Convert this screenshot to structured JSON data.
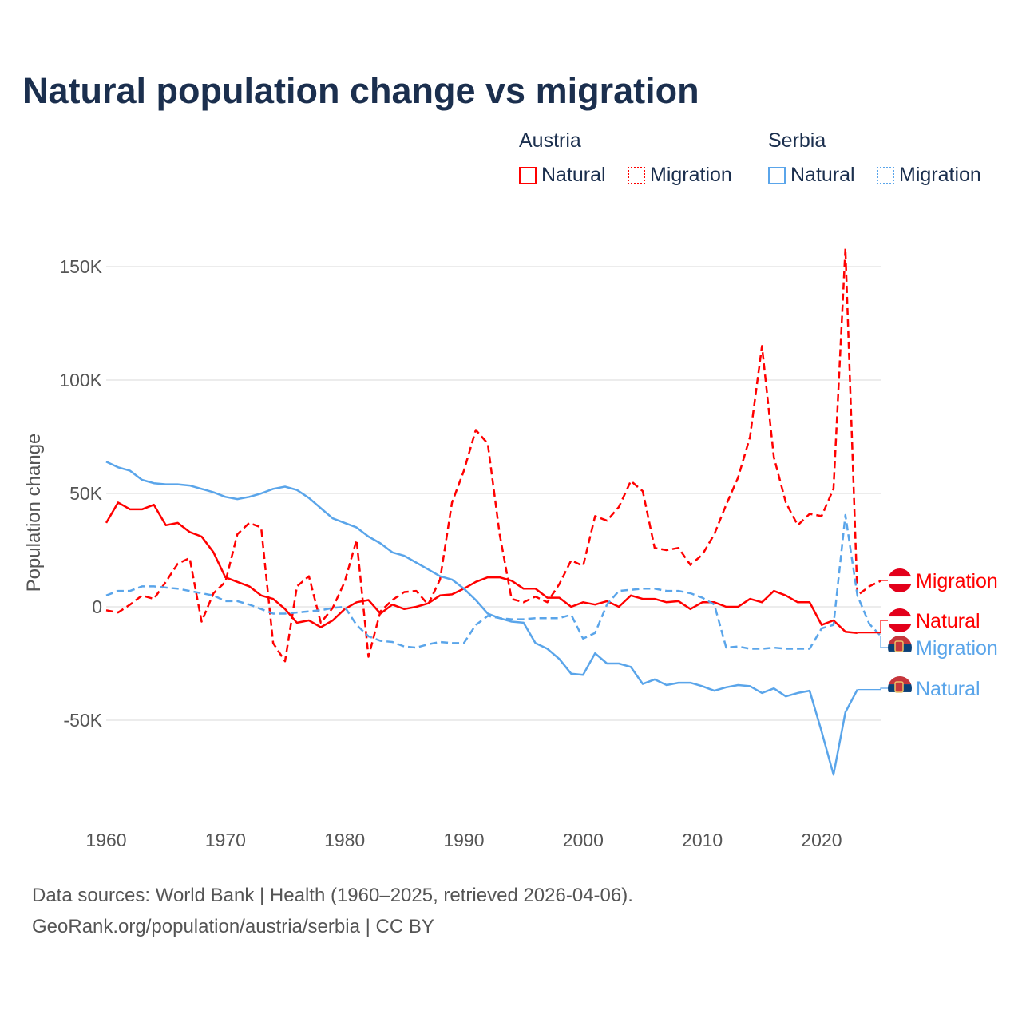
{
  "title": "Natural population change vs migration",
  "legend": {
    "groups": [
      {
        "name": "Austria",
        "items": [
          "Natural",
          "Migration"
        ]
      },
      {
        "name": "Serbia",
        "items": [
          "Natural",
          "Migration"
        ]
      }
    ]
  },
  "footer": {
    "line1": "Data sources: World Bank | Health (1960–2025, retrieved 2026-04-06).",
    "line2": "GeoRank.org/population/austria/serbia | CC BY"
  },
  "colors": {
    "austria": "#ff0000",
    "serbia": "#5aa5ea",
    "title": "#1b2f4e"
  },
  "chart_data": {
    "type": "line",
    "title": "Natural population change vs migration",
    "xlabel": "",
    "ylabel": "Population change",
    "xlim": [
      1960,
      2025
    ],
    "ylim": [
      -90000,
      175000
    ],
    "x_ticks": [
      1960,
      1970,
      1980,
      1990,
      2000,
      2010,
      2020
    ],
    "x_tick_labels": [
      "1960",
      "1970",
      "1980",
      "1990",
      "2000",
      "2010",
      "2020"
    ],
    "y_ticks": [
      -50000,
      0,
      50000,
      100000,
      150000
    ],
    "y_tick_labels": [
      "-50K",
      "0",
      "50K",
      "100K",
      "150K"
    ],
    "grid": true,
    "legend_position": "top-right",
    "x_start": 1960,
    "series": [
      {
        "name": "Austria Natural",
        "label": "Natural",
        "color": "#ff0000",
        "dash": false,
        "values": [
          37,
          46,
          43,
          43,
          45,
          36,
          37,
          33,
          31,
          24,
          13,
          11,
          9,
          5,
          3.5,
          -1,
          -7,
          -6,
          -9,
          -6,
          -1,
          2,
          3,
          -3,
          1,
          -1,
          0,
          1.5,
          5,
          5.5,
          8,
          11,
          13,
          13,
          11.5,
          8,
          8,
          4,
          4,
          0,
          2,
          1,
          2.5,
          0,
          5,
          3.5,
          3.5,
          2,
          2.5,
          -1,
          2,
          2,
          0,
          0,
          3.5,
          2,
          7,
          5,
          2,
          2,
          -8,
          -6,
          -11,
          -11.5
        ]
      },
      {
        "name": "Austria Migration",
        "label": "Migration",
        "color": "#ff0000",
        "dash": true,
        "values": [
          -1.5,
          -2.5,
          1,
          5,
          3.5,
          11,
          19,
          21.5,
          -6.5,
          6,
          11,
          32,
          37,
          35,
          -16,
          -24,
          9,
          13.5,
          -7,
          -0.5,
          11,
          29.5,
          -22,
          -2,
          3,
          6.5,
          7,
          1,
          12,
          46,
          60,
          78,
          72,
          32,
          3.5,
          2,
          4.5,
          2,
          10,
          20.5,
          18,
          40,
          38,
          44,
          55.5,
          51,
          26,
          25,
          26,
          18.5,
          23,
          32,
          45,
          57,
          75,
          115,
          66,
          46,
          36,
          41,
          40,
          52,
          158,
          5,
          9,
          11.5
        ]
      },
      {
        "name": "Serbia Natural",
        "label": "Natural",
        "color": "#5aa5ea",
        "dash": false,
        "values": [
          64,
          61.5,
          60,
          56,
          54.5,
          54,
          54,
          53.5,
          52,
          50.5,
          48.5,
          47.5,
          48.5,
          50,
          52,
          53,
          51.5,
          48,
          43.5,
          39,
          37,
          35,
          31,
          28,
          24,
          22.5,
          19.5,
          16.5,
          13.5,
          12,
          8,
          3,
          -3,
          -5,
          -6.5,
          -7,
          -16,
          -18.5,
          -23,
          -29.5,
          -30,
          -20.5,
          -25,
          -25,
          -26.5,
          -34,
          -32,
          -34.5,
          -33.5,
          -33.5,
          -35,
          -37,
          -35.5,
          -34.5,
          -35,
          -38,
          -36,
          -39.5,
          -38,
          -37,
          -55,
          -74,
          -46.5,
          -36.5
        ]
      },
      {
        "name": "Serbia Migration",
        "label": "Migration",
        "color": "#5aa5ea",
        "dash": true,
        "values": [
          5,
          7,
          7,
          9,
          9,
          8.5,
          8,
          7,
          6,
          5,
          2.5,
          2.5,
          1,
          -1,
          -3,
          -3,
          -2.5,
          -2,
          -1.5,
          -0.5,
          0,
          -8,
          -13,
          -15,
          -15.5,
          -17.5,
          -18,
          -16.5,
          -15.5,
          -16,
          -16,
          -8,
          -4,
          -5,
          -5.5,
          -5.5,
          -5,
          -5,
          -5,
          -3.5,
          -14,
          -11.5,
          1,
          7,
          7.5,
          8,
          8,
          7,
          7,
          6,
          4,
          1,
          -18,
          -17.5,
          -18.5,
          -18.5,
          -18,
          -18.5,
          -18.5,
          -18.5,
          -9.5,
          -8,
          40.5,
          5,
          -7.5,
          -13
        ]
      }
    ],
    "value_unit": "thousands",
    "end_labels": [
      {
        "text": "Migration",
        "series": 1,
        "color": "#ff0000",
        "flag": "austria"
      },
      {
        "text": "Natural",
        "series": 0,
        "color": "#ff0000",
        "flag": "austria"
      },
      {
        "text": "Migration",
        "series": 3,
        "color": "#5aa5ea",
        "flag": "serbia"
      },
      {
        "text": "Natural",
        "series": 2,
        "color": "#5aa5ea",
        "flag": "serbia"
      }
    ]
  }
}
